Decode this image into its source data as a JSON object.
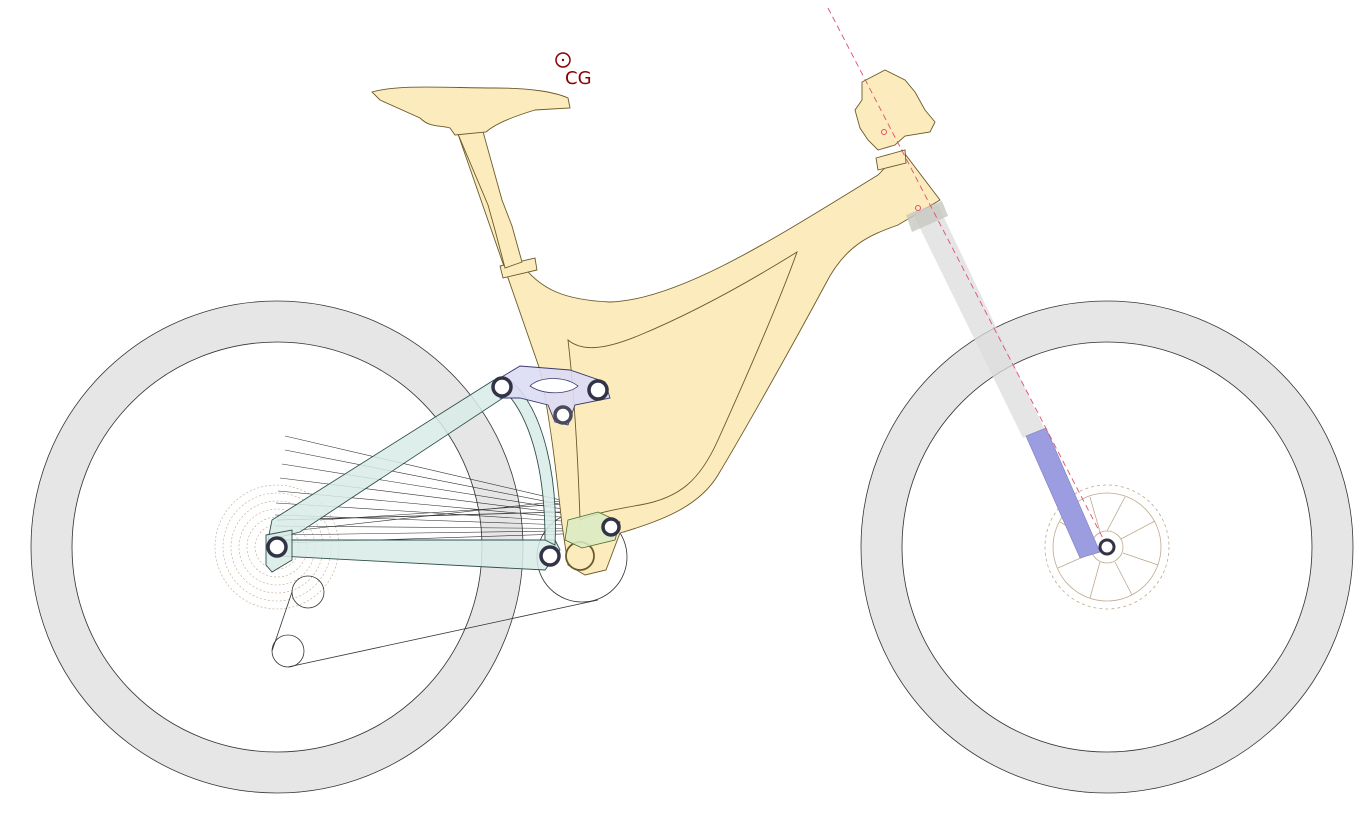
{
  "cg": {
    "label": "CG"
  },
  "colors": {
    "tire": "#e6e6e6",
    "tire_stroke": "#333333",
    "frame": "#fbebbd",
    "frame_stroke": "#6b5a2a",
    "rear_triangle": "#d8ebe8",
    "rear_triangle_stroke": "#2f4f4b",
    "rocker": "#dcdcf4",
    "rocker_stroke": "#3a3a6e",
    "pivot": "#333347",
    "shock": "#b8b8b8",
    "fork_lower": "#9c9ce0",
    "fork_upper": "#dcdcdc",
    "steering_axis": "#e0506e",
    "cg": "#8b0000",
    "chain": "#333333",
    "disc": "#bfa88e"
  },
  "icons": {
    "pivot": "pivot-bearing-icon",
    "cg": "center-of-gravity-icon"
  }
}
